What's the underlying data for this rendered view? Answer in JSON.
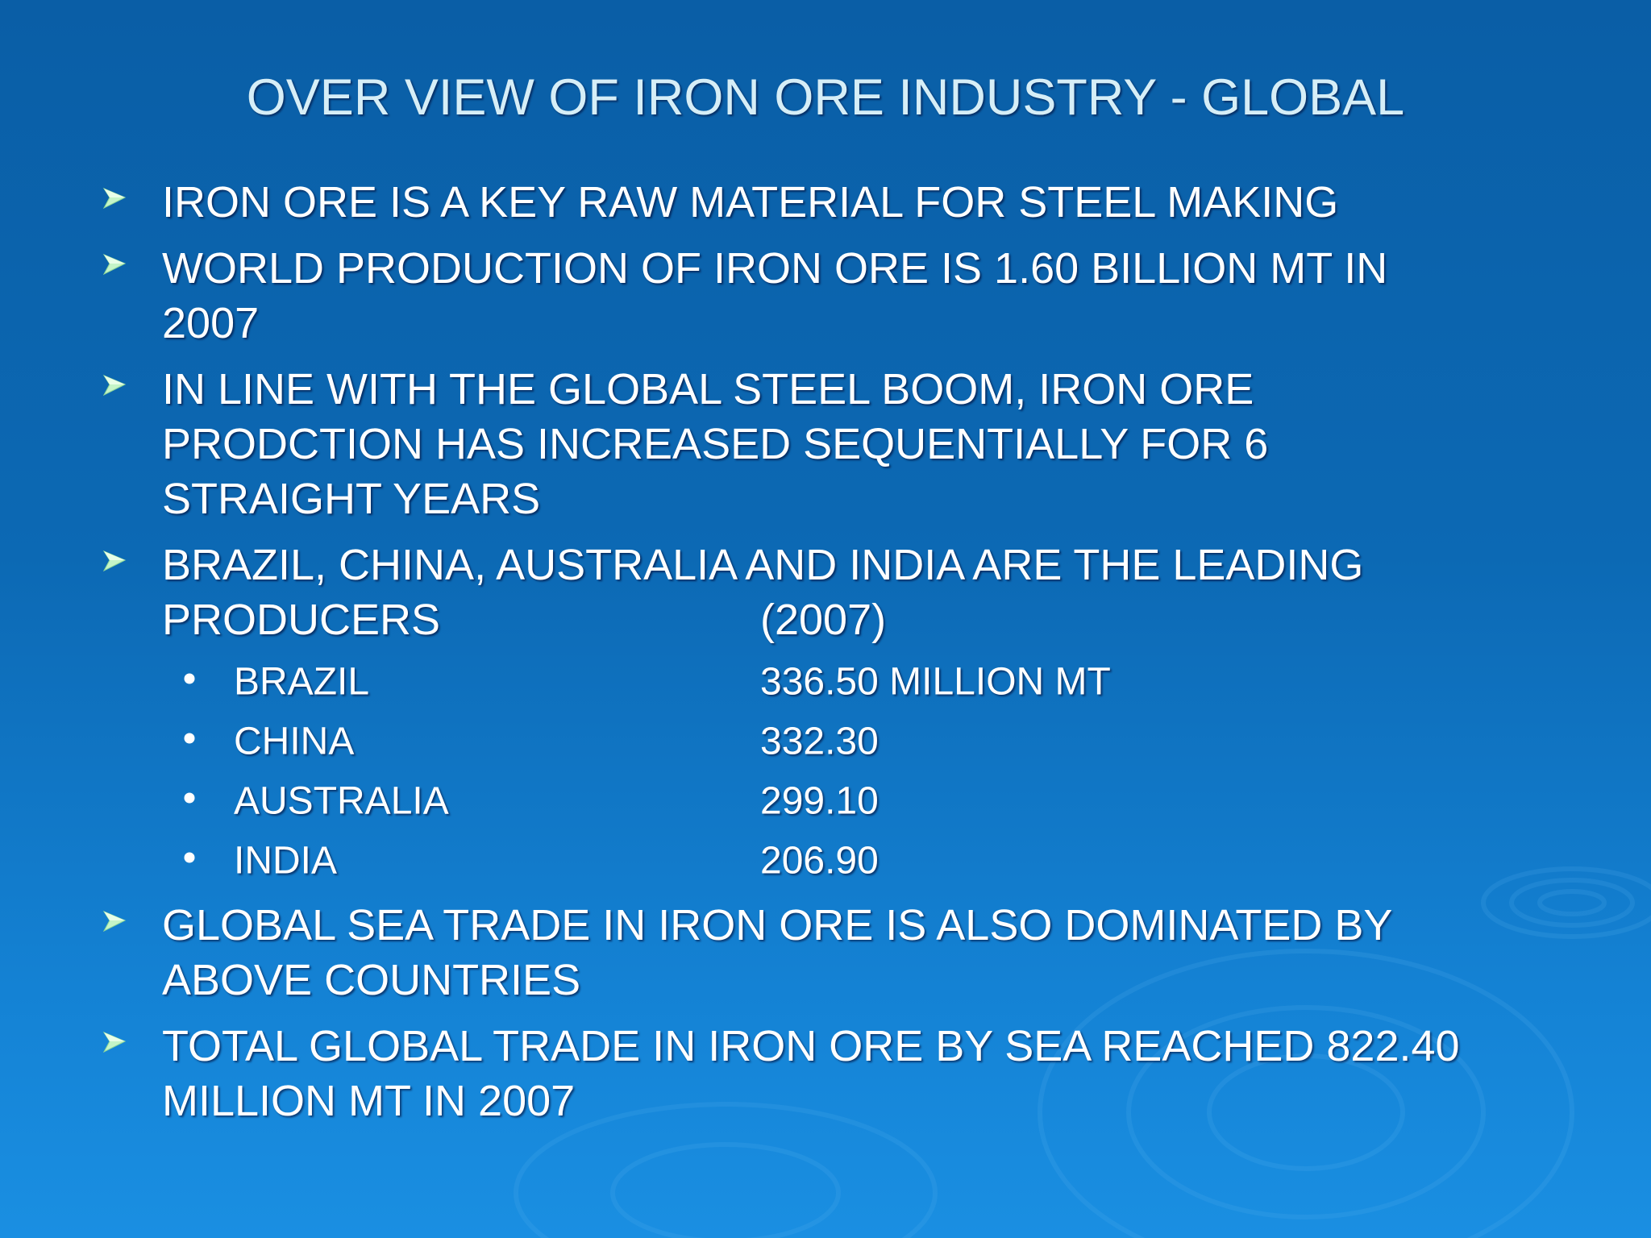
{
  "title": "OVER VIEW OF IRON ORE INDUSTRY - GLOBAL",
  "bullets": [
    {
      "lines": [
        "IRON ORE IS A KEY RAW MATERIAL FOR STEEL MAKING"
      ]
    },
    {
      "lines": [
        "WORLD PRODUCTION OF IRON ORE IS 1.60 BILLION MT IN",
        "2007"
      ]
    },
    {
      "lines": [
        "IN LINE WITH THE GLOBAL STEEL BOOM, IRON ORE",
        "PRODCTION HAS INCREASED SEQUENTIALLY FOR 6",
        "STRAIGHT YEARS"
      ]
    },
    {
      "lines": [
        "BRAZIL, CHINA, AUSTRALIA AND INDIA ARE THE LEADING",
        "PRODUCERS"
      ],
      "year": "(2007)",
      "producers": [
        {
          "country": "BRAZIL",
          "value": "336.50 MILLION MT"
        },
        {
          "country": "CHINA",
          "value": "332.30"
        },
        {
          "country": "AUSTRALIA",
          "value": "299.10"
        },
        {
          "country": "INDIA",
          "value": "206.90"
        }
      ]
    },
    {
      "lines": [
        "GLOBAL SEA TRADE IN IRON ORE IS ALSO DOMINATED BY",
        "ABOVE COUNTRIES"
      ]
    },
    {
      "lines": [
        "TOTAL GLOBAL TRADE IN IRON ORE BY SEA REACHED 822.40",
        "MILLION MT IN 2007"
      ]
    }
  ]
}
